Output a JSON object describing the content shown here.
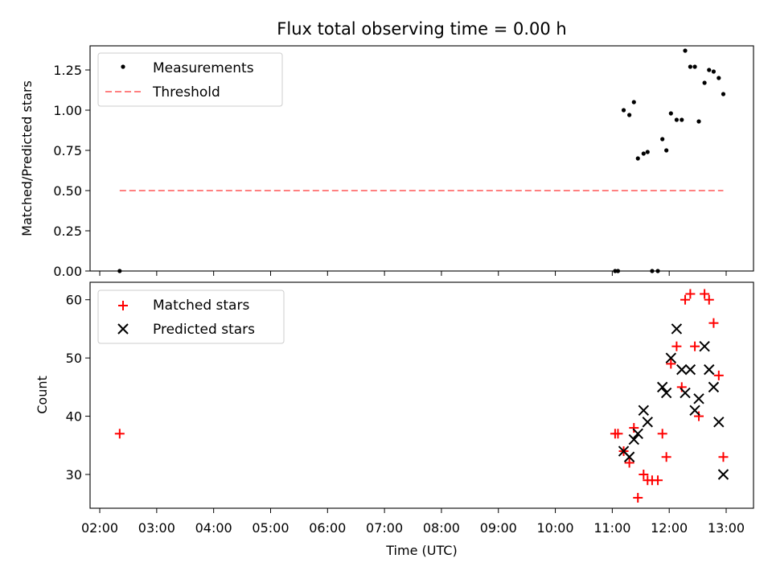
{
  "chart_data": {
    "type": "scatter",
    "title": "Flux total observing time = 0.00 h",
    "xlabel": "Time (UTC)",
    "x_ticks": [
      "02:00",
      "03:00",
      "04:00",
      "05:00",
      "06:00",
      "07:00",
      "08:00",
      "09:00",
      "10:00",
      "11:00",
      "12:00",
      "13:00"
    ],
    "xlim_hours": [
      1.83,
      13.48
    ],
    "panels": [
      {
        "name": "ratio",
        "ylabel": "Matched/Predicted stars",
        "ylim": [
          0,
          1.4
        ],
        "y_ticks": [
          "0.00",
          "0.25",
          "0.50",
          "0.75",
          "1.00",
          "1.25"
        ],
        "legend_position": "upper-left",
        "legend": [
          "Measurements",
          "Threshold"
        ],
        "threshold": {
          "label": "Threshold",
          "value": 0.5,
          "x_start": 2.35,
          "x_end": 12.95,
          "color": "#ff8080"
        },
        "measurements": {
          "label": "Measurements",
          "color": "#000000",
          "points": [
            [
              2.35,
              0.0
            ],
            [
              11.05,
              0.0
            ],
            [
              11.1,
              0.0
            ],
            [
              11.2,
              1.0
            ],
            [
              11.3,
              0.97
            ],
            [
              11.38,
              1.05
            ],
            [
              11.45,
              0.7
            ],
            [
              11.55,
              0.73
            ],
            [
              11.62,
              0.74
            ],
            [
              11.7,
              0.0
            ],
            [
              11.8,
              0.0
            ],
            [
              11.88,
              0.82
            ],
            [
              11.95,
              0.75
            ],
            [
              12.03,
              0.98
            ],
            [
              12.13,
              0.94
            ],
            [
              12.22,
              0.94
            ],
            [
              12.28,
              1.37
            ],
            [
              12.37,
              1.27
            ],
            [
              12.45,
              1.27
            ],
            [
              12.52,
              0.93
            ],
            [
              12.62,
              1.17
            ],
            [
              12.7,
              1.25
            ],
            [
              12.78,
              1.24
            ],
            [
              12.87,
              1.2
            ],
            [
              12.95,
              1.1
            ]
          ]
        }
      },
      {
        "name": "counts",
        "ylabel": "Count",
        "ylim": [
          24.2,
          63.0
        ],
        "y_ticks": [
          "30",
          "40",
          "50",
          "60"
        ],
        "legend_position": "upper-left",
        "legend": [
          "Matched stars",
          "Predicted stars"
        ],
        "matched": {
          "label": "Matched stars",
          "color": "#ff0000",
          "points": [
            [
              2.35,
              37
            ],
            [
              11.05,
              37
            ],
            [
              11.1,
              37
            ],
            [
              11.2,
              34
            ],
            [
              11.3,
              32
            ],
            [
              11.38,
              38
            ],
            [
              11.45,
              26
            ],
            [
              11.55,
              30
            ],
            [
              11.62,
              29
            ],
            [
              11.7,
              29
            ],
            [
              11.8,
              29
            ],
            [
              11.88,
              37
            ],
            [
              11.95,
              33
            ],
            [
              12.03,
              49
            ],
            [
              12.13,
              52
            ],
            [
              12.22,
              45
            ],
            [
              12.28,
              60
            ],
            [
              12.37,
              61
            ],
            [
              12.45,
              52
            ],
            [
              12.52,
              40
            ],
            [
              12.62,
              61
            ],
            [
              12.7,
              60
            ],
            [
              12.78,
              56
            ],
            [
              12.87,
              47
            ],
            [
              12.95,
              33
            ]
          ]
        },
        "predicted": {
          "label": "Predicted stars",
          "color": "#000000",
          "points": [
            [
              11.2,
              34
            ],
            [
              11.3,
              33
            ],
            [
              11.38,
              36
            ],
            [
              11.45,
              37
            ],
            [
              11.55,
              41
            ],
            [
              11.62,
              39
            ],
            [
              11.88,
              45
            ],
            [
              11.95,
              44
            ],
            [
              12.03,
              50
            ],
            [
              12.13,
              55
            ],
            [
              12.22,
              48
            ],
            [
              12.28,
              44
            ],
            [
              12.37,
              48
            ],
            [
              12.45,
              41
            ],
            [
              12.52,
              43
            ],
            [
              12.62,
              52
            ],
            [
              12.7,
              48
            ],
            [
              12.78,
              45
            ],
            [
              12.87,
              39
            ],
            [
              12.95,
              30
            ]
          ]
        }
      }
    ]
  }
}
